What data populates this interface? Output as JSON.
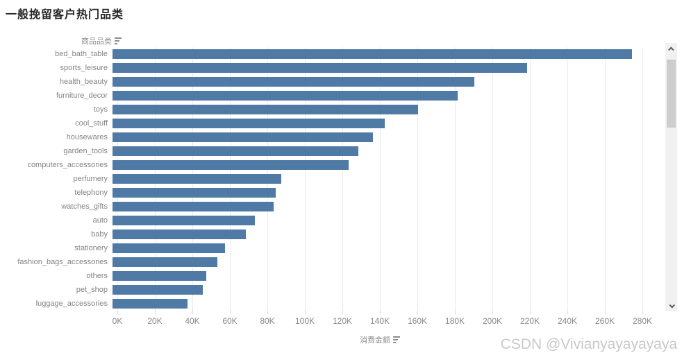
{
  "title": "一般挽留客户热门品类",
  "row_header": {
    "label": "商品品类"
  },
  "axis": {
    "label": "消费金额"
  },
  "watermark": "CSDN @Vivianyayayayaya",
  "colors": {
    "bar": "#507aa6",
    "grid": "#eaeaea",
    "label": "#848484",
    "title": "#262626"
  },
  "chart_data": {
    "type": "bar",
    "orientation": "horizontal",
    "title": "一般挽留客户热门品类",
    "xlabel": "消费金额",
    "ylabel": "商品品类",
    "categories": [
      "bed_bath_table",
      "sports_leisure",
      "health_beauty",
      "furniture_decor",
      "toys",
      "cool_stuff",
      "housewares",
      "garden_tools",
      "computers_accessories",
      "perfumery",
      "telephony",
      "watches_gifts",
      "auto",
      "baby",
      "stationery",
      "fashion_bags_accessories",
      "others",
      "pet_shop",
      "luggage_accessories"
    ],
    "values": [
      277000,
      221000,
      193000,
      184000,
      163000,
      145000,
      139000,
      131000,
      126000,
      90000,
      87000,
      86000,
      76000,
      71000,
      60000,
      56000,
      50000,
      48000,
      40000
    ],
    "x_ticks": [
      "0K",
      "20K",
      "40K",
      "60K",
      "80K",
      "100K",
      "120K",
      "140K",
      "160K",
      "180K",
      "200K",
      "220K",
      "240K",
      "260K",
      "280K"
    ],
    "xlim": [
      0,
      280000
    ],
    "tick_step": 20000,
    "grid": true,
    "legend": false,
    "scrollable": true
  }
}
